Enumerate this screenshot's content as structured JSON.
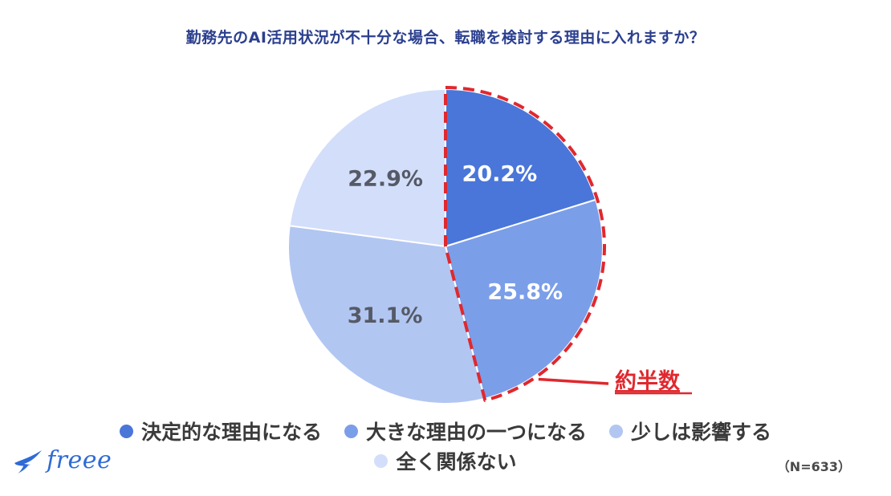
{
  "chart_data": {
    "type": "pie",
    "title": "勤務先のAI活用状況が不十分な場合、転職を検討する理由に入れますか？",
    "sample_size": "（N=633）",
    "slices": [
      {
        "label": "決定的な理由になる",
        "value": 20.2,
        "display": "20.2%",
        "color": "#4a76d9",
        "label_color": "#ffffff"
      },
      {
        "label": "大きな理由の一つになる",
        "value": 25.8,
        "display": "25.8%",
        "color": "#7b9ee9",
        "label_color": "#ffffff"
      },
      {
        "label": "少しは影響する",
        "value": 31.1,
        "display": "31.1%",
        "color": "#b2c6f2",
        "label_color": "#555a66"
      },
      {
        "label": "全く関係ない",
        "value": 22.9,
        "display": "22.9%",
        "color": "#d3defa",
        "label_color": "#555a66"
      }
    ],
    "legend_placement": "bottom",
    "annotation": {
      "text": "約半数",
      "color": "#e0282e",
      "highlights_slices": [
        "決定的な理由になる",
        "大きな理由の一つになる"
      ]
    }
  },
  "brand": {
    "name": "freee",
    "color": "#2f6bd6",
    "icon": "bird-icon"
  }
}
